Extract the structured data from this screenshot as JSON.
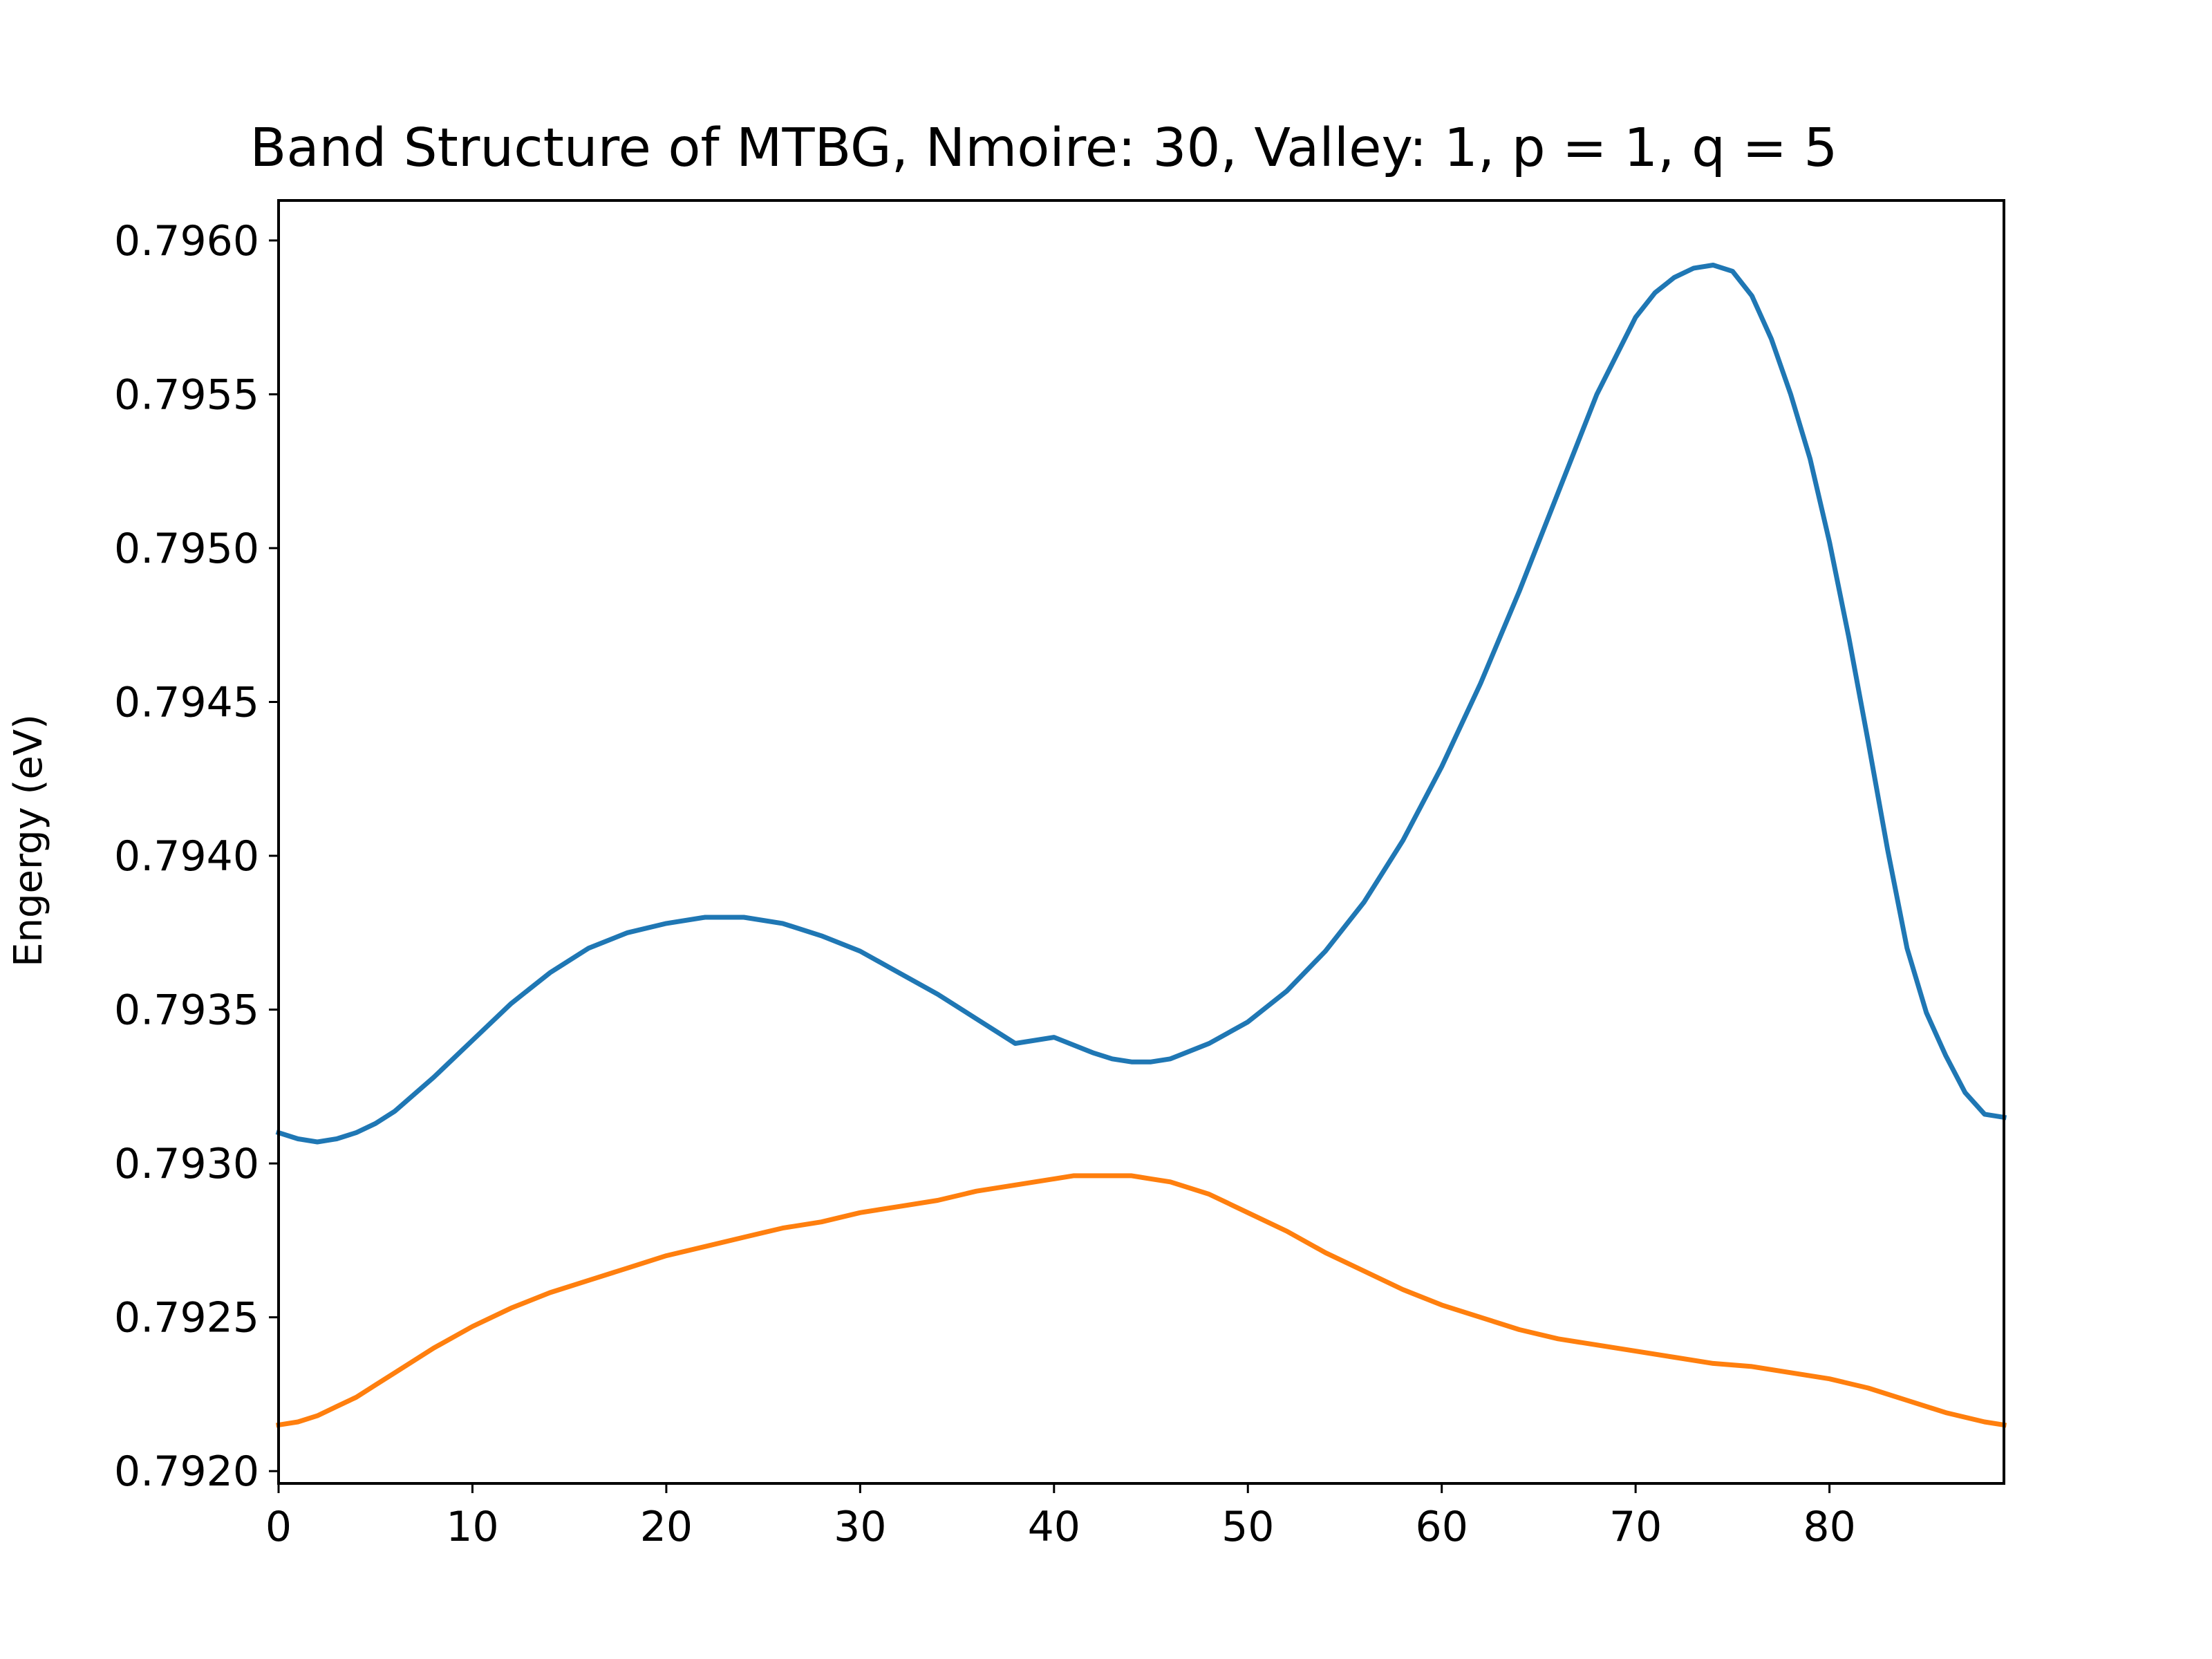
{
  "chart_data": {
    "type": "line",
    "title": "Band Structure of MTBG, Nmoire: 30, Valley: 1, p = 1, q = 5",
    "xlabel": "",
    "ylabel": "Engergy (eV)",
    "xlim": [
      0,
      89
    ],
    "ylim": [
      0.79196,
      0.79613
    ],
    "xticks": [
      0,
      10,
      20,
      30,
      40,
      50,
      60,
      70,
      80
    ],
    "xtick_labels": [
      "0",
      "10",
      "20",
      "30",
      "40",
      "50",
      "60",
      "70",
      "80"
    ],
    "yticks": [
      0.792,
      0.7925,
      0.793,
      0.7935,
      0.794,
      0.7945,
      0.795,
      0.7955,
      0.796
    ],
    "ytick_labels": [
      "0.7920",
      "0.7925",
      "0.7930",
      "0.7935",
      "0.7940",
      "0.7945",
      "0.7950",
      "0.7955",
      "0.7960"
    ],
    "grid": false,
    "legend": "none",
    "series": [
      {
        "color": "#1f77b4",
        "x": [
          0,
          1,
          2,
          3,
          4,
          5,
          6,
          8,
          10,
          12,
          14,
          16,
          18,
          20,
          22,
          23,
          24,
          26,
          28,
          30,
          32,
          34,
          36,
          38,
          40,
          42,
          43,
          44,
          45,
          46,
          48,
          50,
          52,
          54,
          56,
          58,
          60,
          62,
          64,
          66,
          68,
          70,
          71,
          72,
          73,
          74,
          75,
          76,
          77,
          78,
          79,
          80,
          81,
          82,
          83,
          84,
          85,
          86,
          87,
          88,
          89
        ],
        "values": [
          0.7931,
          0.79308,
          0.79307,
          0.79308,
          0.7931,
          0.79313,
          0.79317,
          0.79328,
          0.7934,
          0.79352,
          0.79362,
          0.7937,
          0.79375,
          0.79378,
          0.7938,
          0.7938,
          0.7938,
          0.79378,
          0.79374,
          0.79369,
          0.79362,
          0.79355,
          0.79347,
          0.79339,
          0.79341,
          0.79336,
          0.79334,
          0.79333,
          0.79333,
          0.79334,
          0.79339,
          0.79346,
          0.79356,
          0.79369,
          0.79385,
          0.79405,
          0.79429,
          0.79456,
          0.79486,
          0.79518,
          0.7955,
          0.79575,
          0.79583,
          0.79588,
          0.79591,
          0.79592,
          0.7959,
          0.79582,
          0.79568,
          0.7955,
          0.79529,
          0.79502,
          0.79471,
          0.79437,
          0.79402,
          0.7937,
          0.79349,
          0.79335,
          0.79323,
          0.79316,
          0.79315
        ]
      },
      {
        "color": "#ff7f0e",
        "x": [
          0,
          1,
          2,
          3,
          4,
          5,
          6,
          8,
          10,
          12,
          14,
          16,
          18,
          20,
          22,
          24,
          26,
          28,
          30,
          32,
          34,
          36,
          38,
          40,
          41,
          42,
          43,
          44,
          45,
          46,
          48,
          50,
          52,
          54,
          56,
          58,
          60,
          62,
          64,
          66,
          68,
          70,
          72,
          74,
          76,
          78,
          80,
          82,
          84,
          86,
          88,
          89
        ],
        "values": [
          0.79215,
          0.79216,
          0.79218,
          0.79221,
          0.79224,
          0.79228,
          0.79232,
          0.7924,
          0.79247,
          0.79253,
          0.79258,
          0.79262,
          0.79266,
          0.7927,
          0.79273,
          0.79276,
          0.79279,
          0.79281,
          0.79284,
          0.79286,
          0.79288,
          0.79291,
          0.79293,
          0.79295,
          0.79296,
          0.79296,
          0.79296,
          0.79296,
          0.79295,
          0.79294,
          0.7929,
          0.79284,
          0.79278,
          0.79271,
          0.79265,
          0.79259,
          0.79254,
          0.7925,
          0.79246,
          0.79243,
          0.79241,
          0.79239,
          0.79237,
          0.79235,
          0.79234,
          0.79232,
          0.7923,
          0.79227,
          0.79223,
          0.79219,
          0.79216,
          0.79215
        ]
      }
    ]
  }
}
